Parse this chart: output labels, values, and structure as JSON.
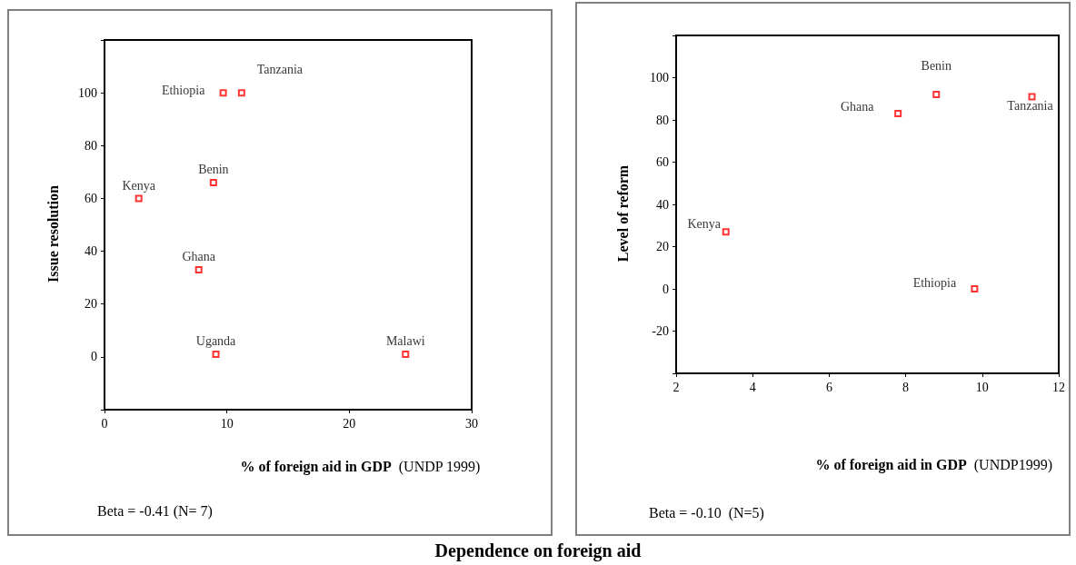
{
  "chart_data": [
    {
      "type": "scatter",
      "title": "Dependence on foreign aid",
      "xlabel": "% of foreign aid in GDP  (UNDP 1999)",
      "ylabel": "Issue resolution",
      "x": [
        2.8,
        9.7,
        11.2,
        8.9,
        7.7,
        9.1,
        24.6
      ],
      "values": [
        60,
        100,
        100,
        66,
        33,
        1,
        1
      ],
      "color": "#ff0000",
      "marker": "square",
      "grid": false,
      "xlim": [
        0,
        30
      ],
      "xticks": [
        0,
        10,
        20,
        30
      ],
      "ylim": [
        -20,
        120
      ],
      "yticks": [
        {
          "value": -20,
          "label": null
        },
        0,
        20,
        40,
        60,
        80,
        100,
        {
          "value": 120,
          "label": null
        }
      ],
      "annotations": [
        {
          "text": "Kenya",
          "x": 2.8,
          "y": 60
        },
        {
          "text": "Ethiopia",
          "x": 9.7,
          "y": 100
        },
        {
          "text": "Tanzania",
          "x": 11.2,
          "y": 100
        },
        {
          "text": "Benin",
          "x": 8.9,
          "y": 66
        },
        {
          "text": "Ghana",
          "x": 7.7,
          "y": 33
        },
        {
          "text": "Uganda",
          "x": 9.1,
          "y": 1
        },
        {
          "text": "Malawi",
          "x": 24.6,
          "y": 1
        },
        "Beta = -0.41 (N= 7)"
      ]
    },
    {
      "type": "scatter",
      "xlabel": "% of foreign aid in GDP  (UNDP1999)",
      "ylabel": "Level of reform",
      "x": [
        3.3,
        7.8,
        8.8,
        11.3,
        9.8
      ],
      "values": [
        27,
        83,
        92,
        91,
        0
      ],
      "color": "#ff0000",
      "marker": "square",
      "grid": false,
      "xlim": [
        2,
        12
      ],
      "xticks": [
        2,
        4,
        6,
        8,
        10,
        12
      ],
      "ylim": [
        -40,
        120
      ],
      "yticks": [
        {
          "value": -40,
          "label": null
        },
        -20,
        0,
        20,
        40,
        60,
        80,
        100,
        {
          "value": 120,
          "label": null
        }
      ],
      "annotations": [
        {
          "text": "Kenya",
          "x": 3.3,
          "y": 27
        },
        {
          "text": "Ghana",
          "x": 7.8,
          "y": 83
        },
        {
          "text": "Benin",
          "x": 8.8,
          "y": 92
        },
        {
          "text": "Tanzania",
          "x": 11.3,
          "y": 91
        },
        {
          "text": "Ethiopia",
          "x": 9.8,
          "y": 0
        },
        "Beta = -0.10  (N=5)"
      ]
    }
  ]
}
